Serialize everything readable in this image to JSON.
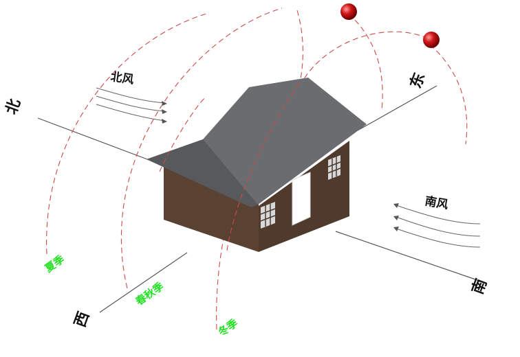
{
  "directions": {
    "north": "北",
    "east": "东",
    "south": "南",
    "west": "西"
  },
  "winds": {
    "north_wind": "北风",
    "south_wind": "南风"
  },
  "seasons": {
    "summer": "夏季",
    "spring_autumn": "春秋季",
    "winter": "冬季"
  },
  "colors": {
    "season_text": "#22e022",
    "sun_path": "#cc4a4a",
    "sun": "#d01818",
    "roof": "#6a6c6f",
    "wall": "#5a4232",
    "door": "#ffffff"
  },
  "icons": {
    "sun": "sun-icon",
    "window": "window-icon"
  }
}
